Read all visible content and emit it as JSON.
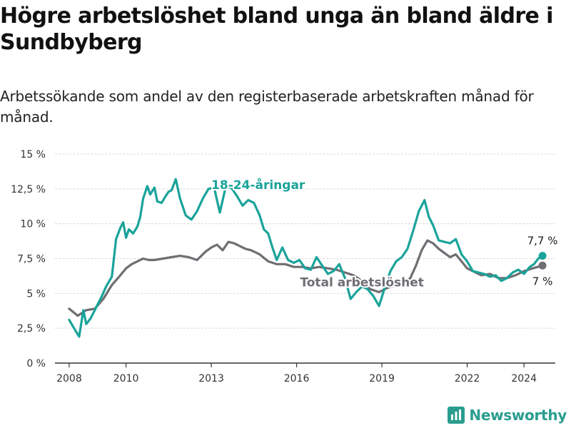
{
  "header": {
    "title": "Högre arbetslöshet bland unga än bland äldre i Sundbyberg",
    "subtitle": "Arbetssökande som andel av den registerbaserade arbetskraften månad för månad."
  },
  "brand": {
    "name": "Newsworthy"
  },
  "colors": {
    "youth": "#1aa39a",
    "total": "#6e6e73",
    "grid": "#d9d9d9",
    "axis": "#333333"
  },
  "chart_data": {
    "type": "line",
    "title": "Högre arbetslöshet bland unga än bland äldre i Sundbyberg",
    "subtitle": "Arbetssökande som andel av den registerbaserade arbetskraften månad för månad.",
    "xlabel": "",
    "ylabel": "",
    "xlim": [
      2007.5,
      2025.1
    ],
    "ylim": [
      0,
      15
    ],
    "y_ticks": [
      0,
      2.5,
      5,
      7.5,
      10,
      12.5,
      15
    ],
    "y_tick_labels": [
      "0 %",
      "2,5 %",
      "5 %",
      "7,5 %",
      "10 %",
      "12,5 %",
      "15 %"
    ],
    "x_ticks": [
      2008,
      2010,
      2013,
      2016,
      2019,
      2022,
      2024
    ],
    "x_tick_labels": [
      "2008",
      "2010",
      "2013",
      "2016",
      "2019",
      "2022",
      "2024"
    ],
    "grid": true,
    "series": [
      {
        "name": "18-24-åringar",
        "label": "18-24-åringar",
        "color": "#1aa39a",
        "end_label": "7,7 %",
        "end_value": 7.7,
        "x": [
          2008.0,
          2008.2,
          2008.35,
          2008.5,
          2008.6,
          2008.75,
          2008.9,
          2009.0,
          2009.15,
          2009.3,
          2009.5,
          2009.65,
          2009.8,
          2009.9,
          2010.0,
          2010.1,
          2010.25,
          2010.4,
          2010.5,
          2010.6,
          2010.75,
          2010.85,
          2011.0,
          2011.1,
          2011.25,
          2011.4,
          2011.5,
          2011.6,
          2011.75,
          2011.9,
          2012.1,
          2012.3,
          2012.5,
          2012.7,
          2012.9,
          2013.1,
          2013.3,
          2013.5,
          2013.7,
          2013.9,
          2014.1,
          2014.3,
          2014.5,
          2014.7,
          2014.85,
          2015.0,
          2015.15,
          2015.3,
          2015.5,
          2015.7,
          2015.9,
          2016.1,
          2016.3,
          2016.5,
          2016.7,
          2016.9,
          2017.1,
          2017.3,
          2017.5,
          2017.7,
          2017.9,
          2018.1,
          2018.3,
          2018.5,
          2018.7,
          2018.9,
          2019.1,
          2019.3,
          2019.5,
          2019.7,
          2019.9,
          2020.1,
          2020.3,
          2020.5,
          2020.65,
          2020.8,
          2021.0,
          2021.2,
          2021.4,
          2021.6,
          2021.8,
          2022.0,
          2022.2,
          2022.4,
          2022.6,
          2022.8,
          2023.0,
          2023.2,
          2023.4,
          2023.6,
          2023.8,
          2024.0,
          2024.2,
          2024.35,
          2024.5,
          2024.65
        ],
        "values": [
          3.1,
          2.4,
          1.9,
          3.8,
          2.8,
          3.2,
          3.8,
          4.2,
          4.8,
          5.5,
          6.2,
          8.9,
          9.7,
          10.1,
          9.0,
          9.6,
          9.3,
          9.8,
          10.5,
          11.8,
          12.7,
          12.1,
          12.6,
          11.6,
          11.5,
          12.0,
          12.3,
          12.4,
          13.2,
          11.8,
          10.6,
          10.3,
          10.9,
          11.8,
          12.5,
          12.6,
          10.8,
          12.6,
          12.6,
          12.0,
          11.3,
          11.7,
          11.5,
          10.6,
          9.6,
          9.3,
          8.3,
          7.4,
          8.3,
          7.4,
          7.2,
          7.4,
          6.8,
          6.7,
          7.6,
          7.0,
          6.4,
          6.6,
          7.1,
          6.1,
          4.6,
          5.1,
          5.5,
          5.3,
          4.8,
          4.1,
          5.4,
          6.6,
          7.3,
          7.6,
          8.2,
          9.5,
          10.9,
          11.7,
          10.5,
          9.9,
          8.8,
          8.7,
          8.6,
          8.9,
          7.8,
          7.3,
          6.6,
          6.5,
          6.4,
          6.2,
          6.3,
          5.9,
          6.1,
          6.5,
          6.7,
          6.4,
          6.9,
          7.1,
          7.5,
          7.7
        ]
      },
      {
        "name": "Total arbetslöshet",
        "label": "Total arbetslöshet",
        "color": "#6e6e73",
        "end_label": "7 %",
        "end_value": 7.0,
        "x": [
          2008.0,
          2008.3,
          2008.6,
          2008.9,
          2009.2,
          2009.5,
          2009.8,
          2010.0,
          2010.2,
          2010.4,
          2010.6,
          2010.8,
          2011.0,
          2011.3,
          2011.6,
          2011.9,
          2012.2,
          2012.5,
          2012.8,
          2013.0,
          2013.2,
          2013.4,
          2013.6,
          2013.8,
          2014.0,
          2014.2,
          2014.4,
          2014.7,
          2015.0,
          2015.3,
          2015.6,
          2015.9,
          2016.2,
          2016.5,
          2016.8,
          2017.1,
          2017.4,
          2017.7,
          2018.0,
          2018.3,
          2018.6,
          2018.9,
          2019.2,
          2019.5,
          2019.8,
          2020.0,
          2020.2,
          2020.4,
          2020.6,
          2020.8,
          2021.0,
          2021.2,
          2021.4,
          2021.6,
          2021.8,
          2022.0,
          2022.2,
          2022.5,
          2022.8,
          2023.1,
          2023.4,
          2023.7,
          2024.0,
          2024.3,
          2024.65
        ],
        "values": [
          3.9,
          3.4,
          3.8,
          3.9,
          4.6,
          5.6,
          6.3,
          6.8,
          7.1,
          7.3,
          7.5,
          7.4,
          7.4,
          7.5,
          7.6,
          7.7,
          7.6,
          7.4,
          8.0,
          8.3,
          8.5,
          8.1,
          8.7,
          8.6,
          8.4,
          8.2,
          8.1,
          7.8,
          7.3,
          7.1,
          7.1,
          6.9,
          6.9,
          6.8,
          6.9,
          6.8,
          6.7,
          6.5,
          6.3,
          5.9,
          5.3,
          5.1,
          5.4,
          5.6,
          5.8,
          6.1,
          7.0,
          8.1,
          8.8,
          8.6,
          8.2,
          7.9,
          7.6,
          7.8,
          7.3,
          6.8,
          6.6,
          6.3,
          6.4,
          6.1,
          6.1,
          6.3,
          6.6,
          6.8,
          7.0
        ]
      }
    ],
    "annotations": [
      {
        "text": "18-24-åringar",
        "series": "18-24-åringar",
        "x": 2013.0,
        "y": 12.5
      },
      {
        "text": "Total arbetslöshet",
        "series": "Total arbetslöshet",
        "x": 2018.3,
        "y": 5.5
      }
    ]
  }
}
